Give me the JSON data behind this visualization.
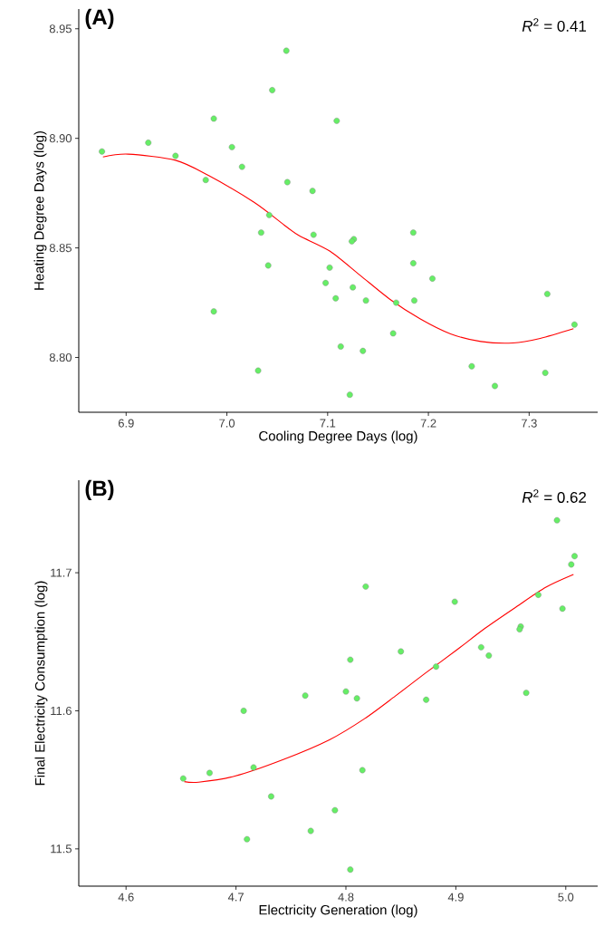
{
  "chart_data": [
    {
      "type": "scatter",
      "title": "(A)",
      "xlabel": "Cooling Degree Days (log)",
      "ylabel": "Heating Degree Days (log)",
      "annotations": [
        "*R*$^{2}$ = 0.41"
      ],
      "xlim": [
        6.853,
        7.368
      ],
      "ylim": [
        8.775,
        8.959
      ],
      "xticks": [
        6.9,
        {
          "value": 7.0,
          "label": "7.0"
        },
        7.1,
        7.2,
        7.3
      ],
      "yticks": [
        {
          "value": 8.8,
          "label": "8.80"
        },
        8.85,
        {
          "value": 8.9,
          "label": "8.90"
        },
        8.95
      ],
      "series": [
        {
          "marker": "circle",
          "color": "#66ee66",
          "x": [
            6.876,
            6.922,
            6.949,
            6.987,
            7.005,
            7.015,
            6.979,
            7.059,
            7.045,
            7.109,
            7.06,
            7.085,
            7.042,
            7.034,
            7.086,
            7.041,
            7.102,
            7.098,
            7.108,
            6.987,
            7.113,
            7.031,
            7.126,
            7.124,
            7.125,
            7.138,
            7.135,
            7.122,
            7.185,
            7.185,
            7.204,
            7.186,
            7.168,
            7.165,
            7.243,
            7.266,
            7.316,
            7.318,
            7.345
          ],
          "values": [
            8.894,
            8.898,
            8.892,
            8.909,
            8.896,
            8.887,
            8.881,
            8.94,
            8.922,
            8.908,
            8.88,
            8.876,
            8.865,
            8.857,
            8.856,
            8.842,
            8.841,
            8.834,
            8.827,
            8.821,
            8.805,
            8.794,
            8.854,
            8.853,
            8.832,
            8.826,
            8.803,
            8.783,
            8.857,
            8.843,
            8.836,
            8.826,
            8.825,
            8.811,
            8.796,
            8.787,
            8.793,
            8.829,
            8.815
          ]
        },
        {
          "type": "line",
          "marker": "none",
          "color": "#ff0000",
          "x": [
            6.877,
            6.902,
            6.949,
            6.982,
            7.027,
            7.057,
            7.072,
            7.102,
            7.132,
            7.162,
            7.192,
            7.222,
            7.252,
            7.284,
            7.311,
            7.344
          ],
          "values": [
            8.8915,
            8.8928,
            8.89,
            8.883,
            8.8708,
            8.8604,
            8.8555,
            8.8486,
            8.8376,
            8.8265,
            8.8176,
            8.8108,
            8.8073,
            8.8066,
            8.8087,
            8.8131
          ]
        }
      ]
    },
    {
      "type": "scatter",
      "title": "(B)",
      "xlabel": "Electricity Generation (log)",
      "ylabel": "Final Electricity Consumption (log)",
      "annotations": [
        "*R*$^{2}$ = 0.62"
      ],
      "xlim": [
        4.557,
        5.029
      ],
      "ylim": [
        11.473,
        11.767
      ],
      "xticks": [
        4.6,
        4.7,
        4.8,
        4.9,
        {
          "value": 5.0,
          "label": "5.0"
        }
      ],
      "yticks": [
        11.5,
        11.6,
        11.7
      ],
      "series": [
        {
          "marker": "circle",
          "color": "#66ee66",
          "x": [
            4.652,
            4.676,
            4.716,
            4.707,
            4.763,
            4.732,
            4.79,
            4.768,
            4.71,
            4.8,
            4.804,
            4.81,
            4.818,
            4.815,
            4.804,
            4.85,
            4.873,
            4.882,
            4.899,
            4.923,
            4.93,
            4.959,
            4.958,
            4.964,
            4.975,
            4.997,
            4.992,
            5.005,
            5.008
          ],
          "values": [
            11.551,
            11.555,
            11.559,
            11.6,
            11.611,
            11.538,
            11.528,
            11.513,
            11.507,
            11.614,
            11.637,
            11.609,
            11.69,
            11.557,
            11.485,
            11.643,
            11.608,
            11.632,
            11.679,
            11.646,
            11.64,
            11.661,
            11.659,
            11.613,
            11.684,
            11.674,
            11.738,
            11.706,
            11.712
          ]
        },
        {
          "type": "line",
          "marker": "none",
          "color": "#ff0000",
          "x": [
            4.653,
            4.666,
            4.699,
            4.743,
            4.785,
            4.817,
            4.845,
            4.872,
            4.9,
            4.927,
            4.955,
            4.982,
            5.007
          ],
          "values": [
            11.5487,
            11.5483,
            11.5527,
            11.5647,
            11.579,
            11.5943,
            11.6107,
            11.6271,
            11.6436,
            11.66,
            11.6753,
            11.6895,
            11.6987
          ]
        }
      ]
    }
  ]
}
